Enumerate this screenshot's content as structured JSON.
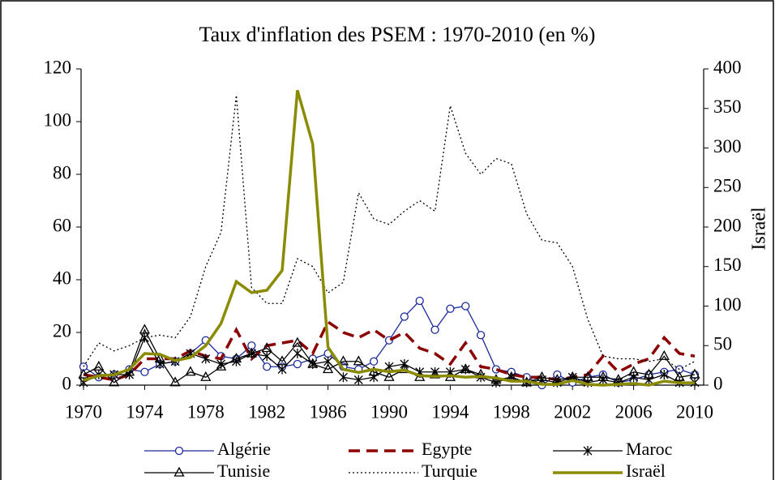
{
  "chart_data": {
    "type": "line",
    "title": "Taux d'inflation des PSEM : 1970-2010 (en %)",
    "y2label": "Israël",
    "x": [
      1970,
      1971,
      1972,
      1973,
      1974,
      1975,
      1976,
      1977,
      1978,
      1979,
      1980,
      1981,
      1982,
      1983,
      1984,
      1985,
      1986,
      1987,
      1988,
      1989,
      1990,
      1991,
      1992,
      1993,
      1994,
      1995,
      1996,
      1997,
      1998,
      1999,
      2000,
      2001,
      2002,
      2003,
      2004,
      2005,
      2006,
      2007,
      2008,
      2009,
      2010
    ],
    "xlim": [
      1970,
      2010
    ],
    "xticks": [
      1970,
      1974,
      1978,
      1982,
      1986,
      1990,
      1994,
      1998,
      2002,
      2006,
      2010
    ],
    "ylim": [
      0,
      120
    ],
    "yticks": [
      0,
      20,
      40,
      60,
      80,
      100,
      120
    ],
    "y2lim": [
      0,
      400
    ],
    "y2ticks": [
      0,
      50,
      100,
      150,
      200,
      250,
      300,
      350,
      400
    ],
    "grid": false,
    "legend": "bottom",
    "series": [
      {
        "name": "Algérie",
        "color": "#1a2a9a",
        "dash": "solid",
        "marker": "circle",
        "values": [
          7,
          3,
          4,
          6,
          5,
          8,
          9,
          12,
          17,
          11,
          10,
          15,
          7,
          7,
          8,
          10,
          12,
          7,
          6,
          9,
          17,
          26,
          32,
          21,
          29,
          30,
          19,
          6,
          5,
          3,
          0,
          4,
          1,
          3,
          4,
          1,
          2,
          4,
          5,
          6,
          4
        ]
      },
      {
        "name": "Egypte",
        "color": "#8b0000",
        "dash": "dashed",
        "marker": "none",
        "values": [
          4,
          3,
          2,
          4,
          10,
          10,
          10,
          13,
          11,
          10,
          21,
          10,
          15,
          16,
          17,
          12,
          24,
          20,
          18,
          21,
          17,
          20,
          14,
          12,
          8,
          16,
          7,
          6,
          4,
          3,
          3,
          2,
          3,
          4,
          11,
          5,
          8,
          10,
          18,
          12,
          11
        ]
      },
      {
        "name": "Maroc",
        "color": "#000000",
        "dash": "solid",
        "marker": "star",
        "values": [
          1,
          4,
          4,
          4,
          18,
          8,
          9,
          12,
          10,
          8,
          9,
          12,
          11,
          6,
          12,
          8,
          9,
          3,
          2,
          3,
          7,
          8,
          5,
          5,
          5,
          6,
          3,
          1,
          3,
          1,
          2,
          1,
          3,
          1,
          2,
          1,
          3,
          2,
          4,
          1,
          1
        ]
      },
      {
        "name": "Tunisie",
        "color": "#000000",
        "dash": "solid",
        "marker": "triangle",
        "values": [
          4,
          7,
          1,
          5,
          21,
          10,
          1,
          5,
          3,
          7,
          10,
          12,
          14,
          9,
          16,
          8,
          6,
          9,
          9,
          5,
          3,
          6,
          3,
          4,
          3,
          6,
          4,
          2,
          3,
          1,
          3,
          2,
          3,
          3,
          3,
          2,
          5,
          4,
          11,
          3,
          4
        ]
      },
      {
        "name": "Turquie",
        "color": "#000000",
        "dash": "dotted",
        "marker": "none",
        "values": [
          7,
          16,
          13,
          15,
          18,
          19,
          18,
          26,
          45,
          58,
          110,
          37,
          31,
          31,
          48,
          45,
          35,
          39,
          73,
          63,
          61,
          66,
          70,
          66,
          106,
          88,
          80,
          86,
          84,
          65,
          55,
          54,
          45,
          25,
          11,
          10,
          10,
          9,
          10,
          6,
          9
        ]
      },
      {
        "name": "Israël",
        "color": "#8b8b00",
        "dash": "solid",
        "marker": "none",
        "axis": "y2",
        "values": [
          6,
          12,
          13,
          20,
          40,
          39,
          31,
          35,
          50,
          78,
          131,
          117,
          120,
          145,
          373,
          305,
          48,
          20,
          16,
          20,
          17,
          19,
          12,
          11,
          12,
          10,
          11,
          9,
          5,
          5,
          1,
          1,
          6,
          1,
          0,
          1,
          2,
          0,
          5,
          3,
          3
        ]
      }
    ]
  }
}
